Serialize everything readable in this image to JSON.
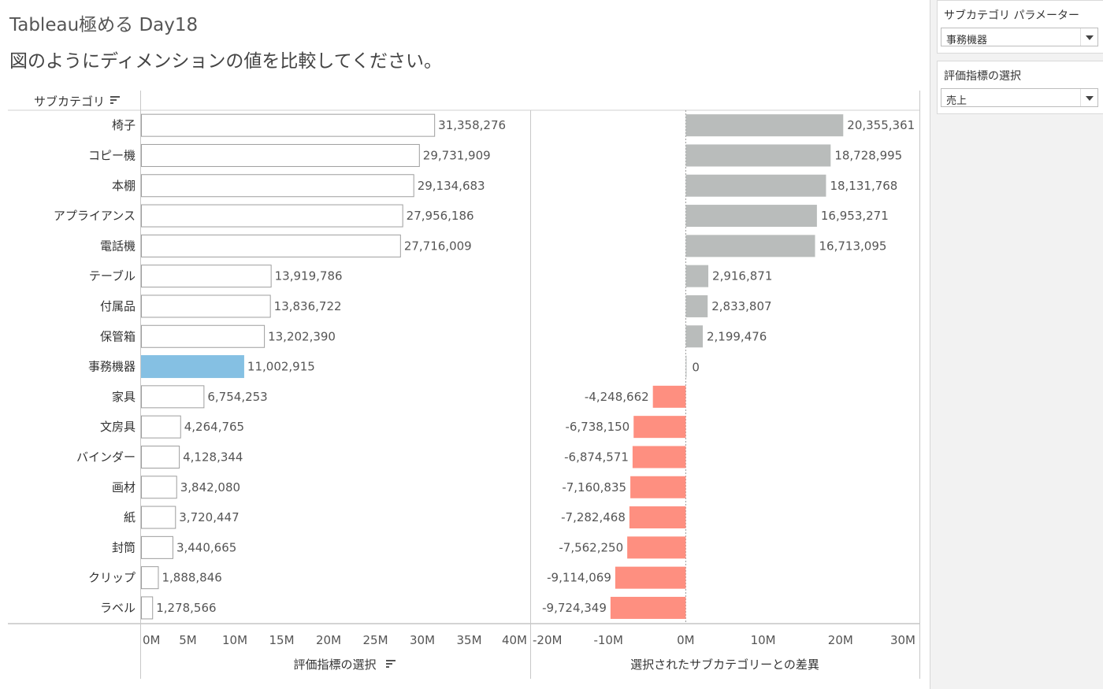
{
  "dashboard": {
    "title": "Tableau極める Day18",
    "subtitle": "図のようにディメンションの値を比較してください。"
  },
  "table": {
    "row_header": "サブカテゴリ",
    "left_axis_title": "評価指標の選択",
    "right_axis_title": "選択されたサブカテゴリーとの差異"
  },
  "panel": {
    "param1_title": "サブカテゴリ パラメーター",
    "param1_value": "事務機器",
    "param2_title": "評価指標の選択",
    "param2_value": "売上"
  },
  "colors": {
    "highlight": "#85c0e3",
    "positive": "#b9bcbb",
    "negative": "#fe8f80",
    "bar_outline": "#9e9e9e"
  },
  "chart_data": [
    {
      "type": "bar",
      "orientation": "horizontal",
      "categories": [
        "椅子",
        "コピー機",
        "本棚",
        "アプライアンス",
        "電話機",
        "テーブル",
        "付属品",
        "保管箱",
        "事務機器",
        "家具",
        "文房具",
        "バインダー",
        "画材",
        "紙",
        "封筒",
        "クリップ",
        "ラベル"
      ],
      "values": [
        31358276,
        29731909,
        29134683,
        27956186,
        27716009,
        13919786,
        13836722,
        13202390,
        11002915,
        6754253,
        4264765,
        4128344,
        3842080,
        3720447,
        3440665,
        1888846,
        1278566
      ],
      "value_labels": [
        "31,358,276",
        "29,731,909",
        "29,134,683",
        "27,956,186",
        "27,716,009",
        "13,919,786",
        "13,836,722",
        "13,202,390",
        "11,002,915",
        "6,754,253",
        "4,264,765",
        "4,128,344",
        "3,842,080",
        "3,720,447",
        "3,440,665",
        "1,888,846",
        "1,278,566"
      ],
      "highlight_category": "事務機器",
      "xlabel": "評価指標の選択",
      "xlim": [
        0,
        40000000
      ],
      "ticks": [
        0,
        5000000,
        10000000,
        15000000,
        20000000,
        25000000,
        30000000,
        35000000,
        40000000
      ],
      "tick_labels": [
        "0M",
        "5M",
        "10M",
        "15M",
        "20M",
        "25M",
        "30M",
        "35M",
        "40M"
      ]
    },
    {
      "type": "bar",
      "orientation": "horizontal",
      "categories": [
        "椅子",
        "コピー機",
        "本棚",
        "アプライアンス",
        "電話機",
        "テーブル",
        "付属品",
        "保管箱",
        "事務機器",
        "家具",
        "文房具",
        "バインダー",
        "画材",
        "紙",
        "封筒",
        "クリップ",
        "ラベル"
      ],
      "values": [
        20355361,
        18728995,
        18131768,
        16953271,
        16713095,
        2916871,
        2833807,
        2199476,
        0,
        -4248662,
        -6738150,
        -6874571,
        -7160835,
        -7282468,
        -7562250,
        -9114069,
        -9724349
      ],
      "value_labels": [
        "20,355,361",
        "18,728,995",
        "18,131,768",
        "16,953,271",
        "16,713,095",
        "2,916,871",
        "2,833,807",
        "2,199,476",
        "0",
        "-4,248,662",
        "-6,738,150",
        "-6,874,571",
        "-7,160,835",
        "-7,282,468",
        "-7,562,250",
        "-9,114,069",
        "-9,724,349"
      ],
      "xlabel": "選択されたサブカテゴリーとの差異",
      "xlim": [
        -20000000,
        30000000
      ],
      "ticks": [
        -20000000,
        -10000000,
        0,
        10000000,
        20000000,
        30000000
      ],
      "tick_labels": [
        "-20M",
        "-10M",
        "0M",
        "10M",
        "20M",
        "30M"
      ]
    }
  ]
}
